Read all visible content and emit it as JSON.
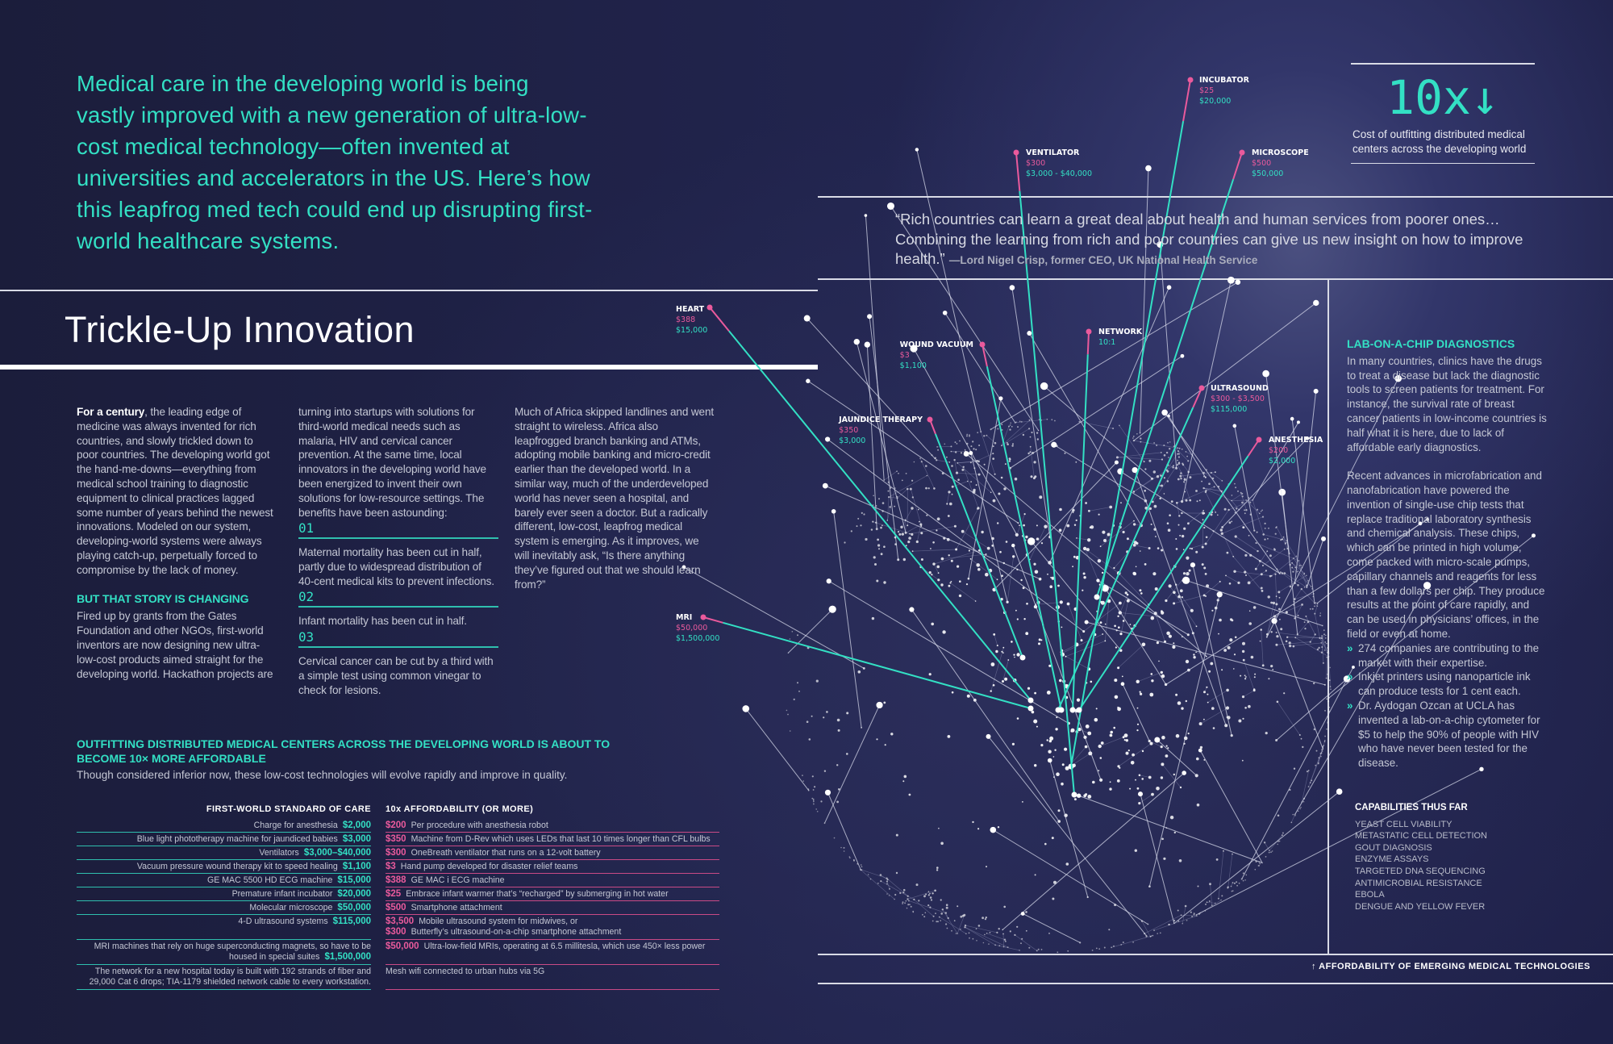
{
  "headline": "Medical care in the developing world is being vastly improved with a new generation of ultra-low-cost medical technology—often invented at universities and accelerators in the US. Here’s how this leapfrog med tech could end up disrupting first-world healthcare systems.",
  "title": "Trickle-Up Innovation",
  "stat": {
    "value": "10x",
    "arrow": "↓",
    "caption": "Cost of outfitting distributed medical centers across the developing world"
  },
  "quote": {
    "text": "“Rich countries can learn a great deal about health and human services from poorer ones… Combining the learning from rich and poor countries can give us new insight on how to improve health.”",
    "attribution": "—Lord Nigel Crisp, former CEO, UK National Health Service"
  },
  "article": {
    "lead_bold": "For a century",
    "p1": ", the leading edge of medicine was always invented for rich countries, and slowly trickled down to poor countries. The developing world got the hand-me-downs—everything from medical school training to diagnostic equipment to clinical practices lagged some number of years behind the newest innovations. Modeled on our system, developing-world systems were always playing catch-up, perpetually forced to compromise by the lack of money.",
    "subhead": "BUT THAT STORY IS CHANGING",
    "p2": "Fired up by grants from the Gates Foundation and other NGOs, first-world inventors are now designing new ultra-low-cost products aimed straight for the developing world. Hackathon projects are turning into startups with solutions for third-world medical needs such as malaria, HIV and cervical cancer prevention. At the same time, local innovators in the developing world have been energized to invent their own solutions for low-resource settings. The benefits have been astounding:",
    "benefits": [
      {
        "num": "01",
        "text": "Maternal mortality has been cut in half, partly due to widespread distribution of 40-cent medical kits to prevent infections."
      },
      {
        "num": "02",
        "text": "Infant mortality has been cut in half."
      },
      {
        "num": "03",
        "text": "Cervical cancer can be cut by a third with a simple test using common vinegar to check for lesions."
      }
    ],
    "p3": "Much of Africa skipped landlines and went straight to wireless. Africa also leapfrogged branch banking and ATMs, adopting mobile banking and micro-credit earlier than the developed world. In a similar way, much of the underdeveloped world has never seen a hospital, and barely ever seen a doctor. But a radically different, low-cost, leapfrog medical system is emerging. As it improves, we will inevitably ask, “Is there anything they’ve figured out that we should learn from?”"
  },
  "outfitting": {
    "heading": "OUTFITTING DISTRIBUTED MEDICAL CENTERS ACROSS THE DEVELOPING WORLD IS ABOUT TO BECOME 10× MORE AFFORDABLE",
    "subtitle": "Though considered inferior now, these low-cost technologies will evolve rapidly and improve in quality.",
    "left_header": "FIRST-WORLD STANDARD OF CARE",
    "right_header": "10x AFFORDABILITY (OR MORE)",
    "rows": [
      {
        "desc": "Charge for anesthesia",
        "price": "$2,000",
        "alt": [
          {
            "price": "$200",
            "desc": "Per procedure with anesthesia robot"
          }
        ]
      },
      {
        "desc": "Blue light phototherapy machine for jaundiced babies",
        "price": "$3,000",
        "alt": [
          {
            "price": "$350",
            "desc": "Machine from D-Rev which uses LEDs that last 10 times longer than CFL bulbs"
          }
        ]
      },
      {
        "desc": "Ventilators",
        "price": "$3,000–$40,000",
        "alt": [
          {
            "price": "$300",
            "desc": "OneBreath ventilator that runs on a 12-volt battery"
          }
        ]
      },
      {
        "desc": "Vacuum pressure wound therapy kit to speed healing",
        "price": "$1,100",
        "alt": [
          {
            "price": "$3",
            "desc": "Hand pump developed for disaster relief teams"
          }
        ]
      },
      {
        "desc": "GE MAC 5500 HD ECG machine",
        "price": "$15,000",
        "alt": [
          {
            "price": "$388",
            "desc": "GE MAC i ECG machine"
          }
        ]
      },
      {
        "desc": "Premature infant incubator",
        "price": "$20,000",
        "alt": [
          {
            "price": "$25",
            "desc": "Embrace infant warmer that’s “recharged” by submerging in hot water"
          }
        ]
      },
      {
        "desc": "Molecular microscope",
        "price": "$50,000",
        "alt": [
          {
            "price": "$500",
            "desc": "Smartphone attachment"
          }
        ]
      },
      {
        "desc": "4-D ultrasound systems",
        "price": "$115,000",
        "alt": [
          {
            "price": "$3,500",
            "desc": "Mobile ultrasound system for midwives, or"
          },
          {
            "price": "$300",
            "desc": "Butterfly’s ultrasound-on-a-chip smartphone attachment"
          }
        ]
      },
      {
        "desc": "MRI machines that rely on huge superconducting magnets, so have to be housed in special suites",
        "price": "$1,500,000",
        "alt": [
          {
            "price": "$50,000",
            "desc": "Ultra-low-field MRIs, operating at 6.5 millitesla, which use 450× less power"
          }
        ]
      },
      {
        "desc": "The network for a new hospital today is built with 192 strands of fiber and 29,000 Cat 6 drops; TIA-1179 shielded network cable to every workstation.",
        "price": "",
        "alt": [
          {
            "price": "",
            "desc": "Mesh wifi connected to urban hubs via 5G"
          }
        ]
      }
    ]
  },
  "lab_on_chip": {
    "heading": "LAB-ON-A-CHIP DIAGNOSTICS",
    "p1": "In many countries, clinics have the drugs to treat a disease but lack the diagnostic tools to screen patients for treatment. For instance, the survival rate of breast cancer patients in low-income countries is half what it is here, due to lack of affordable early diagnostics.",
    "p2": "Recent advances in microfabrication and nanofabrication have powered the invention of single-use chip tests that replace traditional laboratory synthesis and chemical analysis. These chips, which can be printed in high volume, come packed with micro-scale pumps, capillary channels and reagents for less than a few dollars per chip. They produce results at the point of care rapidly, and can be used in physicians’ offices, in the field or even at home.",
    "bullet_icon": "»",
    "bullets": [
      "274 companies are contributing to the market with their expertise.",
      "Inkjet printers using nanoparticle ink can produce tests for 1 cent each.",
      "Dr. Aydogan Ozcan at UCLA has invented a lab-on-a-chip cytometer for $5 to help the 90% of people with HIV who have never been tested for the disease."
    ]
  },
  "capabilities": {
    "heading": "CAPABILITIES THUS FAR",
    "items": [
      "YEAST CELL VIABILITY",
      "METASTATIC CELL DETECTION",
      "GOUT DIAGNOSIS",
      "ENZYME ASSAYS",
      "TARGETED DNA SEQUENCING",
      "ANTIMICROBIAL RESISTANCE",
      "EBOLA",
      "DENGUE AND YELLOW FEVER"
    ]
  },
  "globe": {
    "caption": "AFFORDABILITY OF EMERGING MEDICAL TECHNOLOGIES",
    "caption_icon": "↑",
    "colors": {
      "low_cost": "#ea5a9c",
      "standard": "#33e0c4"
    },
    "labels": [
      {
        "name": "INCUBATOR",
        "low": "$25",
        "high": "$20,000"
      },
      {
        "name": "VENTILATOR",
        "low": "$300",
        "high": "$3,000 - $40,000"
      },
      {
        "name": "MICROSCOPE",
        "low": "$500",
        "high": "$50,000"
      },
      {
        "name": "HEART",
        "low": "$388",
        "high": "$15,000"
      },
      {
        "name": "WOUND VACUUM",
        "low": "$3",
        "high": "$1,100"
      },
      {
        "name": "NETWORK",
        "low": null,
        "high": "10:1"
      },
      {
        "name": "JAUNDICE THERAPY",
        "low": "$350",
        "high": "$3,000"
      },
      {
        "name": "ULTRASOUND",
        "low": "$300 - $3,500",
        "high": "$115,000"
      },
      {
        "name": "ANESTHESIA",
        "low": "$200",
        "high": "$2,000"
      },
      {
        "name": "MRI",
        "low": "$50,000",
        "high": "$1,500,000"
      }
    ]
  }
}
